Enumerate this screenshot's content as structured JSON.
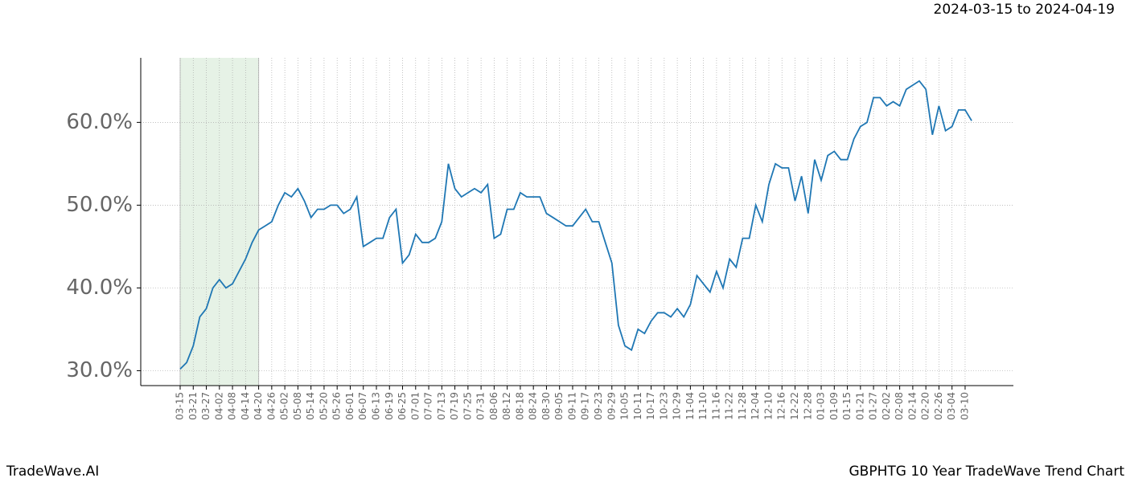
{
  "header": {
    "date_range": "2024-03-15 to 2024-04-19"
  },
  "footer": {
    "brand": "TradeWave.AI",
    "chart_name": "GBPHTG 10 Year TradeWave Trend Chart"
  },
  "chart_data": {
    "type": "line",
    "color": "#1f77b4",
    "grid": true,
    "shade_from": "03-15",
    "shade_to": "04-20",
    "shade_color": "#e6f2e6",
    "categories": [
      "03-15",
      null,
      "03-21",
      null,
      "03-27",
      null,
      "04-02",
      null,
      "04-08",
      null,
      "04-14",
      null,
      "04-20",
      null,
      "04-26",
      null,
      "05-02",
      null,
      "05-08",
      null,
      "05-14",
      null,
      "05-20",
      null,
      "05-26",
      null,
      "06-01",
      null,
      "06-07",
      null,
      "06-13",
      null,
      "06-19",
      null,
      "06-25",
      null,
      "07-01",
      null,
      "07-07",
      null,
      "07-13",
      null,
      "07-19",
      null,
      "07-25",
      null,
      "07-31",
      null,
      "08-06",
      null,
      "08-12",
      null,
      "08-18",
      null,
      "08-24",
      null,
      "08-30",
      null,
      "09-05",
      null,
      "09-11",
      null,
      "09-17",
      null,
      "09-23",
      null,
      "09-29",
      null,
      "10-05",
      null,
      "10-11",
      null,
      "10-17",
      null,
      "10-23",
      null,
      "10-29",
      null,
      "11-04",
      null,
      "11-10",
      null,
      "11-16",
      null,
      "11-22",
      null,
      "11-28",
      null,
      "12-04",
      null,
      "12-10",
      null,
      "12-16",
      null,
      "12-22",
      null,
      "12-28",
      null,
      "01-03",
      null,
      "01-09",
      null,
      "01-15",
      null,
      "01-21",
      null,
      "01-27",
      null,
      "02-02",
      null,
      "02-08",
      null,
      "02-14",
      null,
      "02-20",
      null,
      "02-26",
      null,
      "03-04",
      null,
      "03-10",
      null
    ],
    "values": [
      30.2,
      31,
      33,
      36.5,
      37.5,
      40,
      41,
      40,
      40.5,
      42,
      43.5,
      45.5,
      47,
      47.5,
      48,
      50,
      51.5,
      51,
      52,
      50.5,
      48.5,
      49.5,
      49.5,
      50,
      50,
      49,
      49.5,
      51,
      45,
      45.5,
      46,
      46,
      48.5,
      49.5,
      43,
      44,
      46.5,
      45.5,
      45.5,
      46,
      48,
      55,
      52,
      51,
      51.5,
      52,
      51.5,
      52.5,
      46,
      46.5,
      49.5,
      49.5,
      51.5,
      51,
      51,
      51,
      49,
      48.5,
      48,
      47.5,
      47.5,
      48.5,
      49.5,
      48,
      48,
      45.5,
      43,
      35.5,
      33,
      32.5,
      35,
      34.5,
      36,
      37,
      37,
      36.5,
      37.5,
      36.5,
      38,
      41.5,
      40.5,
      39.5,
      42,
      40,
      43.5,
      42.5,
      46,
      46,
      50,
      48,
      52.5,
      55,
      54.5,
      54.5,
      50.5,
      53.5,
      49,
      55.5,
      53,
      56,
      56.5,
      55.5,
      55.5,
      58,
      59.5,
      60,
      63,
      63,
      62,
      62.5,
      62,
      64,
      64.5,
      65,
      64,
      58.5,
      62,
      59,
      59.5,
      61.5,
      61.5,
      60.2
    ],
    "ylim": [
      28.2,
      67.8
    ],
    "yticks": [
      {
        "value": 30,
        "label": "30.0%"
      },
      {
        "value": 40,
        "label": "40.0%"
      },
      {
        "value": 50,
        "label": "50.0%"
      },
      {
        "value": 60,
        "label": "60.0%"
      }
    ]
  }
}
